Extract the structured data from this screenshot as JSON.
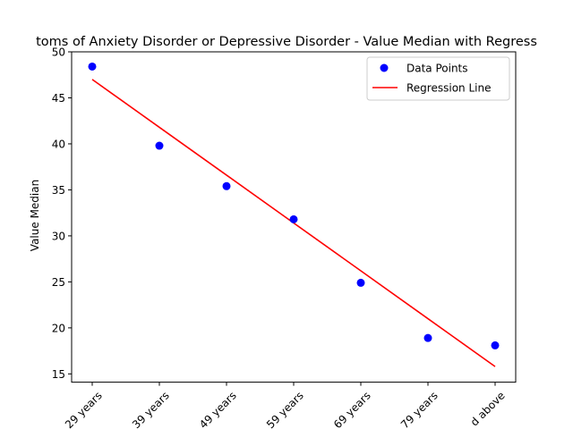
{
  "chart_data": {
    "type": "scatter",
    "title": "toms of Anxiety Disorder or Depressive Disorder - Value Median with Regress",
    "xlabel": "",
    "ylabel": "Value Median",
    "categories": [
      "29 years",
      "39 years",
      "49 years",
      "59 years",
      "69 years",
      "79 years",
      "d above"
    ],
    "ylim": [
      14.1,
      50
    ],
    "yticks": [
      15,
      20,
      25,
      30,
      35,
      40,
      45,
      50
    ],
    "grid": false,
    "legend_position": "top-right",
    "series": [
      {
        "name": "Data Points",
        "kind": "scatter",
        "color": "#0000ff",
        "values": [
          48.4,
          39.8,
          35.4,
          31.8,
          24.9,
          18.9,
          18.1
        ]
      },
      {
        "name": "Regression Line",
        "kind": "line",
        "color": "#ff0000",
        "values": [
          47.0,
          41.8,
          36.6,
          31.4,
          26.2,
          21.0,
          15.8
        ]
      }
    ]
  }
}
